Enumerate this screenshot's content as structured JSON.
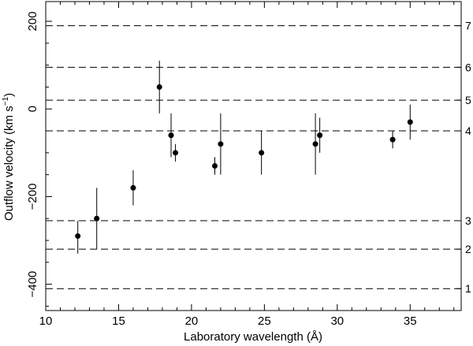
{
  "chart_data": {
    "type": "scatter",
    "xlabel": "Laboratory wavelength (Å)",
    "ylabel_main": "Outflow velocity (km s",
    "ylabel_sup": "−1",
    "ylabel_close": ")",
    "xlim": [
      10,
      38.5
    ],
    "ylim": [
      -460,
      245
    ],
    "x_ticks": [
      {
        "value": 10,
        "label": "10"
      },
      {
        "value": 15,
        "label": "15"
      },
      {
        "value": 20,
        "label": "20"
      },
      {
        "value": 25,
        "label": "25"
      },
      {
        "value": 30,
        "label": "30"
      },
      {
        "value": 35,
        "label": "35"
      }
    ],
    "y_ticks": [
      {
        "value": 200,
        "label": "200"
      },
      {
        "value": 0,
        "label": "0"
      },
      {
        "value": -200,
        "label": "−200"
      },
      {
        "value": -400,
        "label": "−400"
      }
    ],
    "grid": false,
    "component_lines": [
      {
        "label": "1",
        "velocity": -410
      },
      {
        "label": "2",
        "velocity": -320
      },
      {
        "label": "3",
        "velocity": -255
      },
      {
        "label": "4",
        "velocity": -50
      },
      {
        "label": "5",
        "velocity": 20
      },
      {
        "label": "6",
        "velocity": 95
      },
      {
        "label": "7",
        "velocity": 190
      }
    ],
    "points": [
      {
        "x": 12.2,
        "y": -290,
        "err_low": -330,
        "err_high": -255
      },
      {
        "x": 13.5,
        "y": -250,
        "err_low": -320,
        "err_high": -180
      },
      {
        "x": 16.0,
        "y": -180,
        "err_low": -220,
        "err_high": -140
      },
      {
        "x": 17.8,
        "y": 50,
        "err_low": -10,
        "err_high": 110
      },
      {
        "x": 18.6,
        "y": -60,
        "err_low": -110,
        "err_high": -10
      },
      {
        "x": 18.9,
        "y": -100,
        "err_low": -120,
        "err_high": -80
      },
      {
        "x": 21.6,
        "y": -130,
        "err_low": -150,
        "err_high": -110
      },
      {
        "x": 22.0,
        "y": -80,
        "err_low": -150,
        "err_high": -10
      },
      {
        "x": 24.8,
        "y": -100,
        "err_low": -150,
        "err_high": -50
      },
      {
        "x": 28.5,
        "y": -80,
        "err_low": -150,
        "err_high": -10
      },
      {
        "x": 28.8,
        "y": -60,
        "err_low": -100,
        "err_high": -20
      },
      {
        "x": 33.8,
        "y": -70,
        "err_low": -90,
        "err_high": -50
      },
      {
        "x": 35.0,
        "y": -30,
        "err_low": -70,
        "err_high": 10
      }
    ]
  }
}
